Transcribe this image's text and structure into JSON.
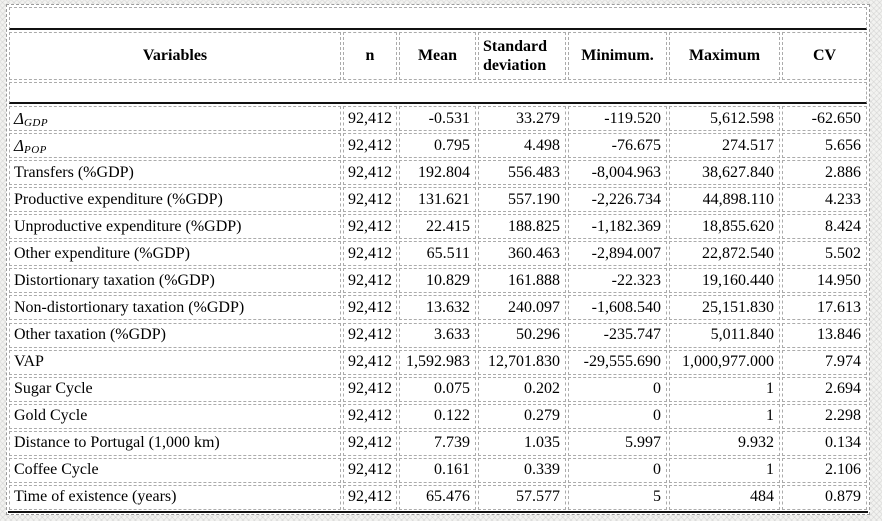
{
  "colors": {
    "grid_dashed": "#ababab",
    "rule_black": "#111111",
    "cell_background": "#ffffff",
    "page_background": "#f2f2f0"
  },
  "table": {
    "columns": {
      "variable": "Variables",
      "n": "n",
      "mean": "Mean",
      "sd": "Standard deviation",
      "min": "Minimum.",
      "max": "Maximum",
      "cv": "CV"
    },
    "rows": [
      {
        "variable": {
          "base": "Δ",
          "sub": "GDP"
        },
        "n": "92,412",
        "mean": "-0.531",
        "sd": "33.279",
        "min": "-119.520",
        "max": "5,612.598",
        "cv": "-62.650"
      },
      {
        "variable": {
          "base": "Δ",
          "sub": "POP"
        },
        "n": "92,412",
        "mean": "0.795",
        "sd": "4.498",
        "min": "-76.675",
        "max": "274.517",
        "cv": "5.656"
      },
      {
        "variable": "Transfers (%GDP)",
        "n": "92,412",
        "mean": "192.804",
        "sd": "556.483",
        "min": "-8,004.963",
        "max": "38,627.840",
        "cv": "2.886"
      },
      {
        "variable": "Productive expenditure (%GDP)",
        "n": "92,412",
        "mean": "131.621",
        "sd": "557.190",
        "min": "-2,226.734",
        "max": "44,898.110",
        "cv": "4.233"
      },
      {
        "variable": "Unproductive expenditure (%GDP)",
        "n": "92,412",
        "mean": "22.415",
        "sd": "188.825",
        "min": "-1,182.369",
        "max": "18,855.620",
        "cv": "8.424"
      },
      {
        "variable": "Other expenditure (%GDP)",
        "n": "92,412",
        "mean": "65.511",
        "sd": "360.463",
        "min": "-2,894.007",
        "max": "22,872.540",
        "cv": "5.502"
      },
      {
        "variable": "Distortionary taxation (%GDP)",
        "n": "92,412",
        "mean": "10.829",
        "sd": "161.888",
        "min": "-22.323",
        "max": "19,160.440",
        "cv": "14.950"
      },
      {
        "variable": "Non-distortionary taxation (%GDP)",
        "n": "92,412",
        "mean": "13.632",
        "sd": "240.097",
        "min": "-1,608.540",
        "max": "25,151.830",
        "cv": "17.613"
      },
      {
        "variable": "Other taxation (%GDP)",
        "n": "92,412",
        "mean": "3.633",
        "sd": "50.296",
        "min": "-235.747",
        "max": "5,011.840",
        "cv": "13.846"
      },
      {
        "variable": "VAP",
        "n": "92,412",
        "mean": "1,592.983",
        "sd": "12,701.830",
        "min": "-29,555.690",
        "max": "1,000,977.000",
        "cv": "7.974"
      },
      {
        "variable": "Sugar Cycle",
        "n": "92,412",
        "mean": "0.075",
        "sd": "0.202",
        "min": "0",
        "max": "1",
        "cv": "2.694"
      },
      {
        "variable": "Gold Cycle",
        "n": "92,412",
        "mean": "0.122",
        "sd": "0.279",
        "min": "0",
        "max": "1",
        "cv": "2.298"
      },
      {
        "variable": "Distance to Portugal (1,000 km)",
        "n": "92,412",
        "mean": "7.739",
        "sd": "1.035",
        "min": "5.997",
        "max": "9.932",
        "cv": "0.134"
      },
      {
        "variable": "Coffee Cycle",
        "n": "92,412",
        "mean": "0.161",
        "sd": "0.339",
        "min": "0",
        "max": "1",
        "cv": "2.106"
      },
      {
        "variable": "Time of existence (years)",
        "n": "92,412",
        "mean": "65.476",
        "sd": "57.577",
        "min": "5",
        "max": "484",
        "cv": "0.879"
      }
    ]
  }
}
